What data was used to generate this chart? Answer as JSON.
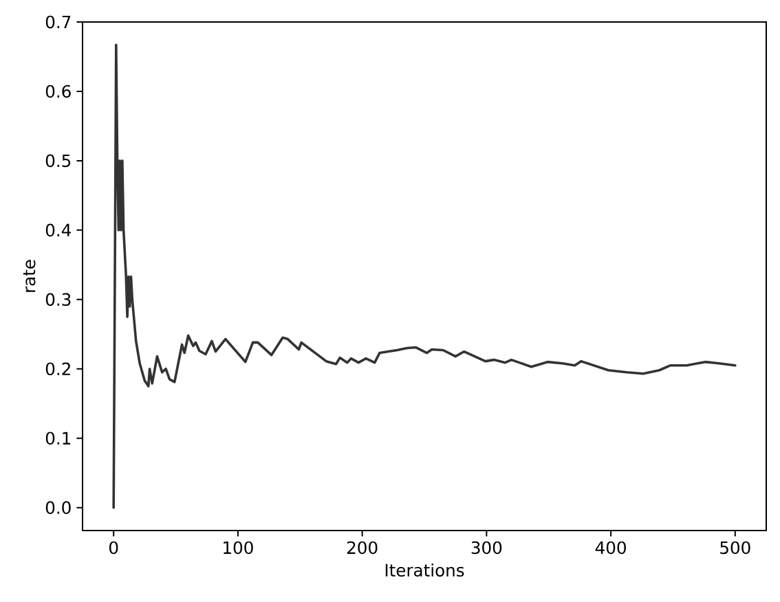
{
  "chart_data": {
    "type": "line",
    "xlabel": "Iterations",
    "ylabel": "rate",
    "xlim": [
      -25,
      525
    ],
    "ylim": [
      -0.033,
      0.7
    ],
    "xticks": [
      0,
      100,
      200,
      300,
      400,
      500
    ],
    "yticks": [
      {
        "value": 0,
        "label": "0.0"
      },
      {
        "value": 0.1,
        "label": "0.1"
      },
      {
        "value": 0.2,
        "label": "0.2"
      },
      {
        "value": 0.3,
        "label": "0.3"
      },
      {
        "value": 0.4,
        "label": "0.4"
      },
      {
        "value": 0.5,
        "label": "0.5"
      },
      {
        "value": 0.6,
        "label": "0.6"
      },
      {
        "value": 0.7,
        "label": "0.7"
      }
    ],
    "series": [
      {
        "color": "#333333",
        "x": [
          0,
          2,
          3,
          4,
          5,
          6,
          7,
          8,
          10,
          11,
          12,
          13,
          14,
          15,
          18,
          21,
          25,
          28,
          29,
          31,
          35,
          39,
          42,
          45,
          49,
          52,
          55,
          57,
          60,
          64,
          66,
          69,
          74,
          79,
          82,
          90,
          106,
          112,
          116,
          127,
          136,
          140,
          149,
          151,
          171,
          179,
          182,
          188,
          191,
          197,
          203,
          210,
          214,
          221,
          228,
          236,
          243,
          252,
          256,
          265,
          275,
          282,
          299,
          306,
          315,
          320,
          328,
          336,
          349,
          361,
          371,
          376,
          398,
          413,
          426,
          439,
          448,
          461,
          476,
          487,
          500
        ],
        "values": [
          0,
          0.667,
          0.5,
          0.4,
          0.5,
          0.4,
          0.5,
          0.4,
          0.333,
          0.275,
          0.333,
          0.29,
          0.333,
          0.3,
          0.24,
          0.208,
          0.183,
          0.175,
          0.2,
          0.179,
          0.218,
          0.195,
          0.2,
          0.185,
          0.181,
          0.208,
          0.235,
          0.223,
          0.248,
          0.233,
          0.238,
          0.226,
          0.221,
          0.24,
          0.225,
          0.243,
          0.21,
          0.238,
          0.238,
          0.22,
          0.245,
          0.243,
          0.228,
          0.238,
          0.211,
          0.207,
          0.216,
          0.209,
          0.215,
          0.209,
          0.215,
          0.209,
          0.223,
          0.225,
          0.227,
          0.23,
          0.231,
          0.223,
          0.228,
          0.227,
          0.218,
          0.225,
          0.211,
          0.213,
          0.209,
          0.213,
          0.208,
          0.203,
          0.21,
          0.208,
          0.205,
          0.211,
          0.198,
          0.195,
          0.193,
          0.198,
          0.205,
          0.205,
          0.21,
          0.208,
          0.205
        ]
      }
    ]
  }
}
